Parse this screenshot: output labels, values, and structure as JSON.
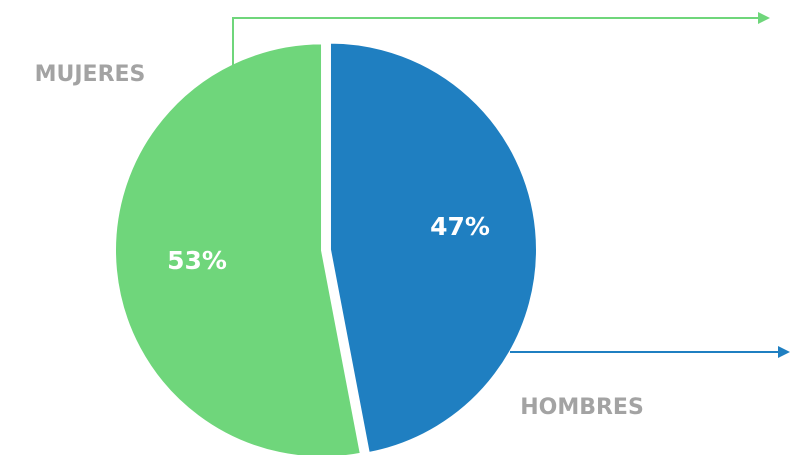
{
  "chart_data": {
    "type": "pie",
    "categories": [
      "MUJERES",
      "HOMBRES"
    ],
    "values": [
      53,
      47
    ],
    "value_labels": [
      "53%",
      "47%"
    ],
    "colors": [
      "#6fd67b",
      "#1f7fc1"
    ]
  }
}
